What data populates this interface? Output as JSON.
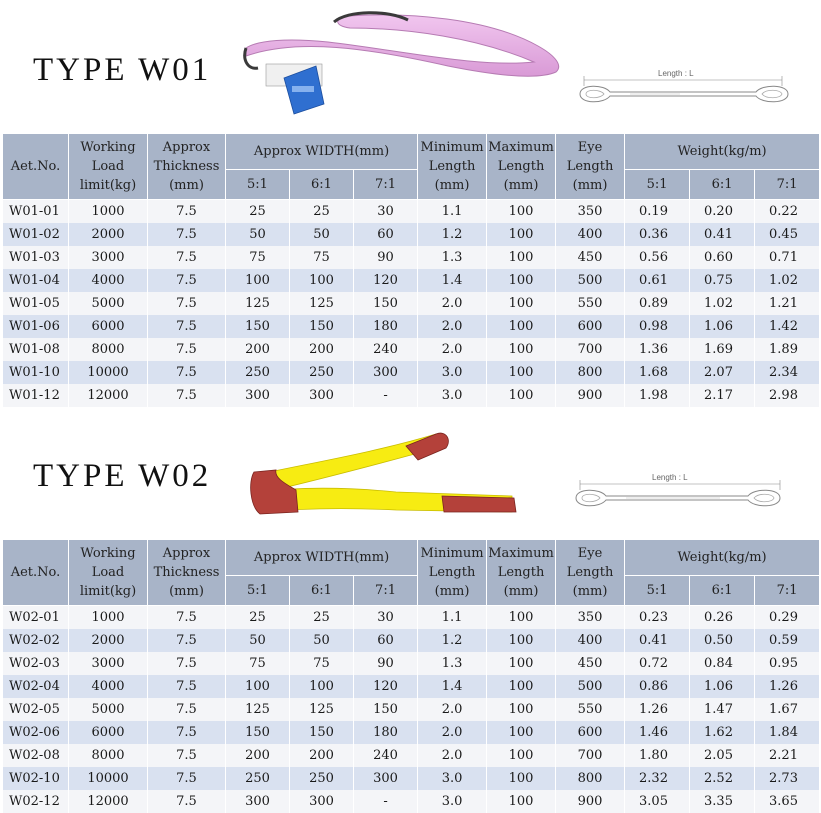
{
  "w01": {
    "title": "TYPE W01",
    "diagram_label": "Length : L",
    "headers": {
      "art_no": "Aet.No.",
      "wll": [
        "Working",
        "Load",
        "limit(kg)"
      ],
      "thickness": [
        "Approx",
        "Thickness",
        "(mm)"
      ],
      "width": "Approx WIDTH(mm)",
      "min_length": [
        "Minimum",
        "Length",
        "(mm)"
      ],
      "max_length": [
        "Maximum",
        "Length",
        "(mm)"
      ],
      "eye_length": [
        "Eye",
        "Length",
        "(mm)"
      ],
      "weight": "Weight(kg/m)",
      "ratios": [
        "5:1",
        "6:1",
        "7:1"
      ]
    },
    "rows": [
      [
        "W01-01",
        "1000",
        "7.5",
        "25",
        "25",
        "30",
        "1.1",
        "100",
        "350",
        "0.19",
        "0.20",
        "0.22"
      ],
      [
        "W01-02",
        "2000",
        "7.5",
        "50",
        "50",
        "60",
        "1.2",
        "100",
        "400",
        "0.36",
        "0.41",
        "0.45"
      ],
      [
        "W01-03",
        "3000",
        "7.5",
        "75",
        "75",
        "90",
        "1.3",
        "100",
        "450",
        "0.56",
        "0.60",
        "0.71"
      ],
      [
        "W01-04",
        "4000",
        "7.5",
        "100",
        "100",
        "120",
        "1.4",
        "100",
        "500",
        "0.61",
        "0.75",
        "1.02"
      ],
      [
        "W01-05",
        "5000",
        "7.5",
        "125",
        "125",
        "150",
        "2.0",
        "100",
        "550",
        "0.89",
        "1.02",
        "1.21"
      ],
      [
        "W01-06",
        "6000",
        "7.5",
        "150",
        "150",
        "180",
        "2.0",
        "100",
        "600",
        "0.98",
        "1.06",
        "1.42"
      ],
      [
        "W01-08",
        "8000",
        "7.5",
        "200",
        "200",
        "240",
        "2.0",
        "100",
        "700",
        "1.36",
        "1.69",
        "1.89"
      ],
      [
        "W01-10",
        "10000",
        "7.5",
        "250",
        "250",
        "300",
        "3.0",
        "100",
        "800",
        "1.68",
        "2.07",
        "2.34"
      ],
      [
        "W01-12",
        "12000",
        "7.5",
        "300",
        "300",
        "-",
        "3.0",
        "100",
        "900",
        "1.98",
        "2.17",
        "2.98"
      ]
    ]
  },
  "w02": {
    "title": "TYPE W02",
    "diagram_label": "Length : L",
    "headers": {
      "art_no": "Aet.No.",
      "wll": [
        "Working",
        "Load",
        "limit(kg)"
      ],
      "thickness": [
        "Approx",
        "Thickness",
        "(mm)"
      ],
      "width": "Approx WIDTH(mm)",
      "min_length": [
        "Minimum",
        "Length",
        "(mm)"
      ],
      "max_length": [
        "Maximum",
        "Length",
        "(mm)"
      ],
      "eye_length": [
        "Eye",
        "Length",
        "(mm)"
      ],
      "weight": "Weight(kg/m)",
      "ratios": [
        "5:1",
        "6:1",
        "7:1"
      ]
    },
    "rows": [
      [
        "W02-01",
        "1000",
        "7.5",
        "25",
        "25",
        "30",
        "1.1",
        "100",
        "350",
        "0.23",
        "0.26",
        "0.29"
      ],
      [
        "W02-02",
        "2000",
        "7.5",
        "50",
        "50",
        "60",
        "1.2",
        "100",
        "400",
        "0.41",
        "0.50",
        "0.59"
      ],
      [
        "W02-03",
        "3000",
        "7.5",
        "75",
        "75",
        "90",
        "1.3",
        "100",
        "450",
        "0.72",
        "0.84",
        "0.95"
      ],
      [
        "W02-04",
        "4000",
        "7.5",
        "100",
        "100",
        "120",
        "1.4",
        "100",
        "500",
        "0.86",
        "1.06",
        "1.26"
      ],
      [
        "W02-05",
        "5000",
        "7.5",
        "125",
        "125",
        "150",
        "2.0",
        "100",
        "550",
        "1.26",
        "1.47",
        "1.67"
      ],
      [
        "W02-06",
        "6000",
        "7.5",
        "150",
        "150",
        "180",
        "2.0",
        "100",
        "600",
        "1.46",
        "1.62",
        "1.84"
      ],
      [
        "W02-08",
        "8000",
        "7.5",
        "200",
        "200",
        "240",
        "2.0",
        "100",
        "700",
        "1.80",
        "2.05",
        "2.21"
      ],
      [
        "W02-10",
        "10000",
        "7.5",
        "250",
        "250",
        "300",
        "3.0",
        "100",
        "800",
        "2.32",
        "2.52",
        "2.73"
      ],
      [
        "W02-12",
        "12000",
        "7.5",
        "300",
        "300",
        "-",
        "3.0",
        "100",
        "900",
        "3.05",
        "3.35",
        "3.65"
      ]
    ]
  },
  "colors": {
    "header_bg": "#a8b4c8",
    "row_light": "#f4f5f8",
    "row_blue": "#d9e1f0",
    "sling_w01": "#e9b3e6",
    "sling_w02_yellow": "#f7ec12",
    "sling_w02_red": "#b4413a"
  }
}
